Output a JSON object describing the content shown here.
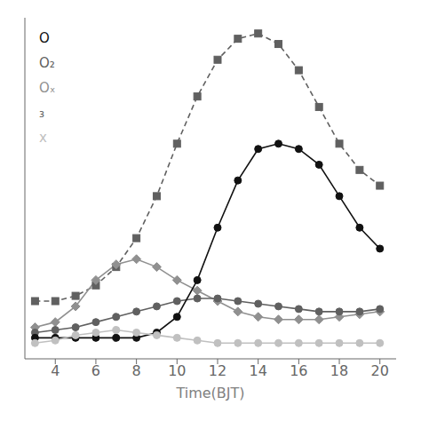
{
  "chart_data": {
    "type": "line",
    "xlabel": "Time(BJT)",
    "x": [
      3,
      4,
      5,
      6,
      7,
      8,
      9,
      10,
      11,
      12,
      13,
      14,
      15,
      16,
      17,
      18,
      19,
      20
    ],
    "xlim": [
      2.5,
      20.8
    ],
    "xticks": [
      4,
      6,
      8,
      10,
      12,
      14,
      16,
      18,
      20
    ],
    "ylim": [
      0,
      130
    ],
    "tick_labels": "x",
    "grid": false,
    "series": [
      {
        "color": "#606060",
        "marker": "square",
        "line_style": "dashed",
        "values": [
          22,
          22,
          24,
          28,
          35,
          46,
          62,
          82,
          100,
          114,
          122,
          124,
          120,
          110,
          96,
          82,
          72,
          66
        ]
      },
      {
        "color": "#909090",
        "marker": "diamond",
        "line_style": "solid",
        "values": [
          12,
          14,
          20,
          30,
          36,
          38,
          35,
          30,
          26,
          22,
          18,
          16,
          15,
          15,
          15,
          16,
          17,
          18
        ]
      },
      {
        "color": "#606060",
        "marker": "circle",
        "line_style": "solid",
        "values": [
          10,
          11,
          12,
          14,
          16,
          18,
          20,
          22,
          23,
          23,
          22,
          21,
          20,
          19,
          18,
          18,
          18,
          19
        ]
      },
      {
        "color": "#111111",
        "marker": "circle",
        "line_style": "solid",
        "values": [
          8,
          8,
          8,
          8,
          8,
          8,
          10,
          16,
          30,
          50,
          68,
          80,
          82,
          80,
          74,
          62,
          50,
          42
        ]
      },
      {
        "color": "#c0c0c0",
        "marker": "circle",
        "line_style": "solid",
        "values": [
          6,
          7,
          9,
          10,
          11,
          10,
          9,
          8,
          7,
          6,
          6,
          6,
          6,
          6,
          6,
          6,
          6,
          6
        ]
      }
    ],
    "annotations": [
      {
        "text": "O",
        "color": "#111111"
      },
      {
        "text": "O₂",
        "color": "#606060"
      },
      {
        "text": "Oₓ",
        "color": "#909090"
      },
      {
        "text": "₃",
        "color": "#606060"
      },
      {
        "text": "x",
        "color": "#c0c0c0"
      }
    ]
  }
}
